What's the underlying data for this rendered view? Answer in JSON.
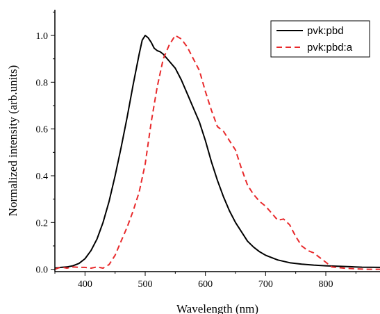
{
  "chart_data": {
    "type": "line",
    "title": "",
    "xlabel": "Wavelength (nm)",
    "ylabel": "Normalized intensity (arb.units)",
    "xlim": [
      350,
      890
    ],
    "ylim": [
      -0.01,
      1.11
    ],
    "xticks": [
      400,
      500,
      600,
      700,
      800
    ],
    "yticks": [
      0.0,
      0.2,
      0.4,
      0.6,
      0.8,
      1.0
    ],
    "ytick_labels": [
      "0.0",
      "0.2",
      "0.4",
      "0.6",
      "0.8",
      "1.0"
    ],
    "grid": false,
    "legend_position": "top-right",
    "series": [
      {
        "name": "pvk:pbd",
        "color": "#000000",
        "dash": "solid",
        "x": [
          350,
          360,
          370,
          380,
          390,
          400,
          410,
          420,
          430,
          440,
          450,
          460,
          470,
          480,
          490,
          495,
          500,
          505,
          510,
          515,
          520,
          525,
          530,
          540,
          550,
          560,
          570,
          580,
          590,
          600,
          610,
          620,
          630,
          640,
          650,
          660,
          670,
          680,
          690,
          700,
          720,
          740,
          760,
          780,
          800,
          820,
          840,
          860,
          890
        ],
        "y": [
          0.005,
          0.008,
          0.01,
          0.015,
          0.025,
          0.045,
          0.08,
          0.13,
          0.2,
          0.29,
          0.4,
          0.52,
          0.65,
          0.79,
          0.92,
          0.98,
          1.0,
          0.99,
          0.97,
          0.945,
          0.935,
          0.93,
          0.92,
          0.89,
          0.86,
          0.81,
          0.75,
          0.69,
          0.63,
          0.55,
          0.46,
          0.38,
          0.31,
          0.25,
          0.2,
          0.16,
          0.12,
          0.095,
          0.075,
          0.06,
          0.04,
          0.028,
          0.022,
          0.018,
          0.015,
          0.013,
          0.011,
          0.009,
          0.008
        ]
      },
      {
        "name": "pvk:pbd:a",
        "color": "#e8292b",
        "dash": "dashed",
        "x": [
          350,
          360,
          370,
          380,
          390,
          400,
          410,
          420,
          430,
          440,
          450,
          460,
          470,
          480,
          490,
          500,
          510,
          520,
          530,
          540,
          550,
          560,
          570,
          580,
          590,
          600,
          610,
          620,
          630,
          640,
          650,
          660,
          670,
          680,
          690,
          700,
          710,
          720,
          730,
          740,
          750,
          760,
          770,
          780,
          790,
          800,
          810,
          830,
          850,
          870,
          890
        ],
        "y": [
          0.0,
          0.01,
          0.005,
          0.01,
          0.008,
          0.008,
          0.005,
          0.01,
          0.005,
          0.02,
          0.06,
          0.12,
          0.18,
          0.25,
          0.33,
          0.45,
          0.63,
          0.78,
          0.9,
          0.96,
          1.0,
          0.985,
          0.95,
          0.9,
          0.85,
          0.76,
          0.68,
          0.61,
          0.59,
          0.55,
          0.51,
          0.43,
          0.36,
          0.32,
          0.29,
          0.27,
          0.24,
          0.21,
          0.215,
          0.19,
          0.14,
          0.1,
          0.08,
          0.07,
          0.05,
          0.03,
          0.01,
          0.005,
          0.002,
          0.0,
          0.0
        ]
      }
    ]
  }
}
